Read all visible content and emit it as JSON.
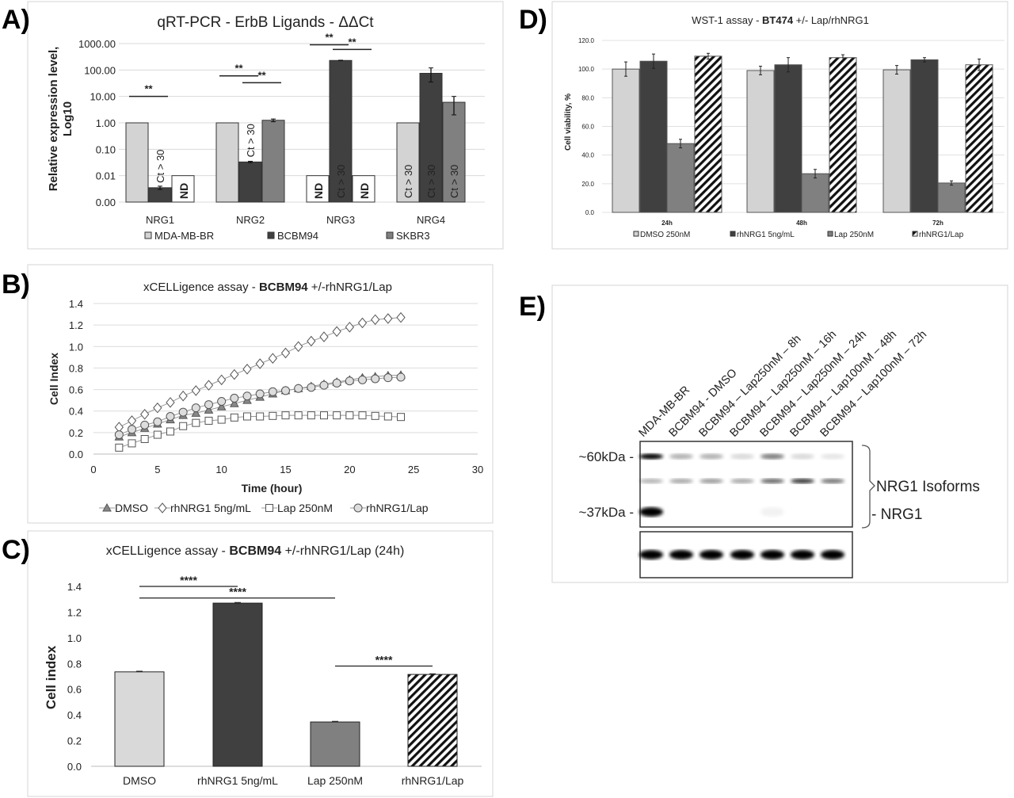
{
  "panel_labels": {
    "a": "A)",
    "b": "B)",
    "c": "C)",
    "d": "D)",
    "e": "E)"
  },
  "chart_data": [
    {
      "id": "A",
      "type": "bar",
      "title": "qRT-PCR - ErbB Ligands - ΔΔCt",
      "ylabel_lines": [
        "Relative expression level,",
        "Log10"
      ],
      "yscale": "log",
      "ylim": [
        0.001,
        1000
      ],
      "yticks": [
        1000,
        100,
        10,
        1,
        0.1,
        0.01,
        0.001
      ],
      "ytick_labels": [
        "1000.00",
        "100.00",
        "10.00",
        "1.00",
        "0.10",
        "0.01",
        "0.00"
      ],
      "grid": true,
      "legend": "bottom",
      "categories": [
        "NRG1",
        "NRG2",
        "NRG3",
        "NRG4"
      ],
      "series": [
        {
          "name": "MDA-MB-BR",
          "color": "#d3d3d3",
          "values": [
            1,
            1,
            null,
            1
          ],
          "errors": [
            null,
            null,
            null,
            null
          ],
          "annotations": [
            "",
            "",
            "ND",
            "Ct > 30"
          ]
        },
        {
          "name": "BCBM94",
          "color": "#404040",
          "values": [
            0.0035,
            0.033,
            230,
            75
          ],
          "errors": [
            [
              0.003,
              0.004
            ],
            [
              0.031,
              0.035
            ],
            [
              225,
              235
            ],
            [
              35,
              120
            ]
          ],
          "annotations": [
            "Ct > 30",
            "Ct > 30",
            "Ct > 30",
            "Ct > 30"
          ]
        },
        {
          "name": "SKBR3",
          "color": "#808080",
          "values": [
            null,
            1.25,
            null,
            6
          ],
          "errors": [
            null,
            [
              1.1,
              1.4
            ],
            null,
            [
              2,
              10
            ]
          ],
          "annotations": [
            "ND",
            "",
            "ND",
            "Ct > 30"
          ]
        }
      ],
      "nd_level": 0.01,
      "significance": [
        {
          "category": 0,
          "from": 0,
          "to": 1,
          "level": 10,
          "label": "**"
        },
        {
          "category": 1,
          "from": 0,
          "to": 1,
          "level": 60,
          "label": "**"
        },
        {
          "category": 1,
          "from": 1,
          "to": 2,
          "level": 33,
          "label": "**"
        },
        {
          "category": 2,
          "from": 0,
          "to": 1,
          "level": 900,
          "label": "**"
        },
        {
          "category": 2,
          "from": 1,
          "to": 2,
          "level": 600,
          "label": "**"
        }
      ]
    },
    {
      "id": "B",
      "type": "line",
      "title_parts": [
        "xCELLigence assay - ",
        "BCBM94",
        " +/-rhNRG1/Lap"
      ],
      "xlabel": "Time (hour)",
      "ylabel": "Cell Index",
      "xlim": [
        0,
        30
      ],
      "ylim": [
        0,
        1.4
      ],
      "xticks": [
        "0",
        "5",
        "10",
        "15",
        "20",
        "25",
        "30"
      ],
      "yticks": [
        "0.0",
        "0.2",
        "0.4",
        "0.6",
        "0.8",
        "1.0",
        "1.2",
        "1.4"
      ],
      "grid": true,
      "legend": "bottom",
      "x": [
        2,
        3,
        4,
        5,
        6,
        7,
        8,
        9,
        10,
        11,
        12,
        13,
        14,
        15,
        16,
        17,
        18,
        19,
        20,
        21,
        22,
        23,
        24
      ],
      "series": [
        {
          "name": "DMSO",
          "marker": "triangle",
          "values": [
            0.16,
            0.2,
            0.24,
            0.28,
            0.32,
            0.36,
            0.38,
            0.41,
            0.44,
            0.47,
            0.5,
            0.53,
            0.56,
            0.59,
            0.61,
            0.63,
            0.65,
            0.67,
            0.69,
            0.71,
            0.72,
            0.73,
            0.735
          ]
        },
        {
          "name": "rhNRG1 5ng/mL",
          "marker": "diamond",
          "values": [
            0.25,
            0.31,
            0.37,
            0.43,
            0.48,
            0.54,
            0.59,
            0.64,
            0.69,
            0.74,
            0.79,
            0.84,
            0.89,
            0.94,
            1.0,
            1.05,
            1.09,
            1.14,
            1.18,
            1.22,
            1.25,
            1.26,
            1.27
          ]
        },
        {
          "name": "Lap 250nM",
          "marker": "square",
          "values": [
            0.06,
            0.1,
            0.14,
            0.18,
            0.21,
            0.26,
            0.29,
            0.31,
            0.32,
            0.34,
            0.35,
            0.35,
            0.355,
            0.36,
            0.36,
            0.36,
            0.36,
            0.36,
            0.36,
            0.36,
            0.355,
            0.35,
            0.345
          ]
        },
        {
          "name": "rhNRG1/Lap",
          "marker": "circle",
          "values": [
            0.18,
            0.23,
            0.27,
            0.3,
            0.35,
            0.39,
            0.43,
            0.46,
            0.49,
            0.52,
            0.54,
            0.56,
            0.58,
            0.59,
            0.61,
            0.62,
            0.64,
            0.66,
            0.68,
            0.69,
            0.7,
            0.71,
            0.715
          ]
        }
      ]
    },
    {
      "id": "C",
      "type": "bar",
      "title_parts": [
        "xCELLigence assay - ",
        "BCBM94",
        " +/-rhNRG1/Lap (24h)"
      ],
      "ylabel": "Cell index",
      "ylim": [
        0,
        1.4
      ],
      "yticks": [
        "0.0",
        "0.2",
        "0.4",
        "0.6",
        "0.8",
        "1.0",
        "1.2",
        "1.4"
      ],
      "grid": false,
      "categories": [
        "DMSO",
        "rhNRG1 5ng/mL",
        "Lap 250nM",
        "rhNRG1/Lap"
      ],
      "values": [
        0.735,
        1.27,
        0.345,
        0.715
      ],
      "errors": [
        0.005,
        0.005,
        0.005,
        0.005
      ],
      "colors": [
        "#d9d9d9",
        "#404040",
        "#808080",
        "hatch"
      ],
      "significance": [
        {
          "from": 0,
          "to": 1,
          "level": 1.4,
          "label": "****"
        },
        {
          "from": 0,
          "to": 2,
          "level": 1.31,
          "label": "****"
        },
        {
          "from": 2,
          "to": 3,
          "level": 0.78,
          "label": "****"
        }
      ]
    },
    {
      "id": "D",
      "type": "bar",
      "title_parts": [
        "WST-1 assay - ",
        "BT474",
        " +/- Lap/rhNRG1"
      ],
      "ylabel": "Cell viability, %",
      "ylim": [
        0,
        120
      ],
      "yticks": [
        "0.0",
        "20.0",
        "40.0",
        "60.0",
        "80.0",
        "100.0",
        "120.0"
      ],
      "grid": true,
      "legend": "bottom",
      "categories": [
        "24h",
        "48h",
        "72h"
      ],
      "series": [
        {
          "name": "DMSO 250nM",
          "color": "#d3d3d3",
          "values": [
            100,
            99,
            99.5
          ],
          "errors": [
            5,
            3,
            3
          ]
        },
        {
          "name": "rhNRG1 5ng/mL",
          "color": "#404040",
          "values": [
            105.5,
            103,
            106.5
          ],
          "errors": [
            5,
            5,
            1.5
          ]
        },
        {
          "name": "Lap 250nM",
          "color": "#808080",
          "values": [
            48,
            27,
            20.5
          ],
          "errors": [
            3,
            3,
            1.5
          ]
        },
        {
          "name": "rhNRG1/Lap",
          "color": "hatch",
          "values": [
            109,
            108,
            103
          ],
          "errors": [
            2,
            2,
            4
          ]
        }
      ]
    }
  ],
  "western_blot": {
    "lanes": [
      "MDA-MB-BR",
      "BCBM94 - DMSO",
      "BCBM94 – Lap250nM – 8h",
      "BCBM94 – Lap250nM – 16h",
      "BCBM94 – Lap250nM – 24h",
      "BCBM94 – Lap100nM – 48h",
      "BCBM94 – Lap100nM – 72h"
    ],
    "markers": [
      "~60kDa -",
      "~37kDa -"
    ],
    "bracket_label": "NRG1 Isoforms",
    "nrg1_label": "- NRG1",
    "band_60kda_intensity": [
      1.0,
      0.3,
      0.3,
      0.15,
      0.5,
      0.15,
      0.1
    ],
    "band_mid_intensity": [
      0.3,
      0.35,
      0.4,
      0.35,
      0.6,
      0.8,
      0.55
    ],
    "band_37kda_intensity": [
      1.0,
      0,
      0,
      0,
      0.05,
      0,
      0
    ],
    "loading_control_intensity": [
      1,
      1,
      1,
      1,
      1,
      1,
      1
    ]
  }
}
